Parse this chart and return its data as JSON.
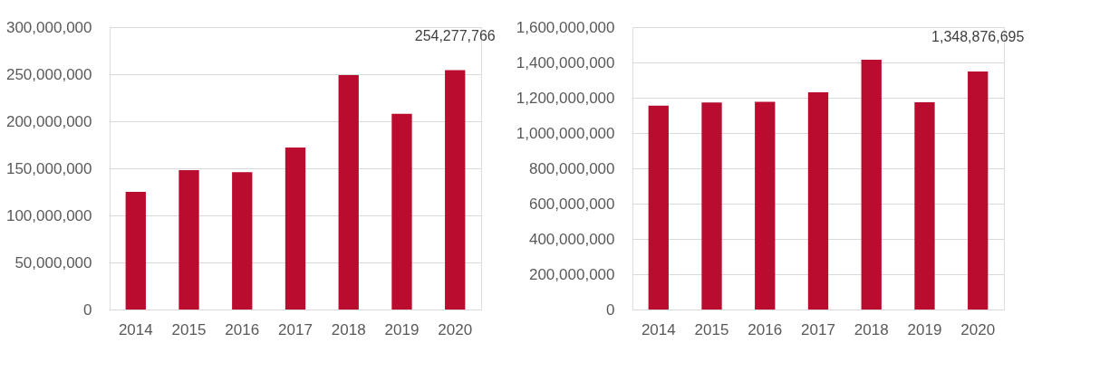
{
  "chart_data": [
    {
      "type": "bar",
      "categories": [
        "2014",
        "2015",
        "2016",
        "2017",
        "2018",
        "2019",
        "2020"
      ],
      "values": [
        125000000,
        148000000,
        146000000,
        172000000,
        249000000,
        208000000,
        254277766
      ],
      "color": "#ba0c2f",
      "value_labels": [
        null,
        null,
        null,
        null,
        null,
        null,
        "254,277,766"
      ],
      "ylim": [
        0,
        300000000
      ],
      "yticks": [
        0,
        {
          "value": 50000000,
          "label": "50,000,000"
        },
        {
          "value": 100000000,
          "label": "100,000,000"
        },
        {
          "value": 150000000,
          "label": "150,000,000"
        },
        {
          "value": 200000000,
          "label": "200,000,000"
        },
        {
          "value": 250000000,
          "label": "250,000,000"
        },
        {
          "value": 300000000,
          "label": "300,000,000"
        }
      ],
      "grid": "y"
    },
    {
      "type": "bar",
      "categories": [
        "2014",
        "2015",
        "2016",
        "2017",
        "2018",
        "2019",
        "2020"
      ],
      "values": [
        1155000000,
        1173000000,
        1177000000,
        1231000000,
        1415000000,
        1175000000,
        1348876695
      ],
      "color": "#ba0c2f",
      "value_labels": [
        null,
        null,
        null,
        null,
        null,
        null,
        "1,348,876,695"
      ],
      "ylim": [
        0,
        1600000000
      ],
      "yticks": [
        0,
        {
          "value": 200000000,
          "label": "200,000,000"
        },
        {
          "value": 400000000,
          "label": "400,000,000"
        },
        {
          "value": 600000000,
          "label": "600,000,000"
        },
        {
          "value": 800000000,
          "label": "800,000,000"
        },
        {
          "value": 1000000000,
          "label": "1,000,000,000"
        },
        {
          "value": 1200000000,
          "label": "1,200,000,000"
        },
        {
          "value": 1400000000,
          "label": "1,400,000,000"
        },
        {
          "value": 1600000000,
          "label": "1,600,000,000"
        }
      ],
      "grid": "y"
    }
  ]
}
